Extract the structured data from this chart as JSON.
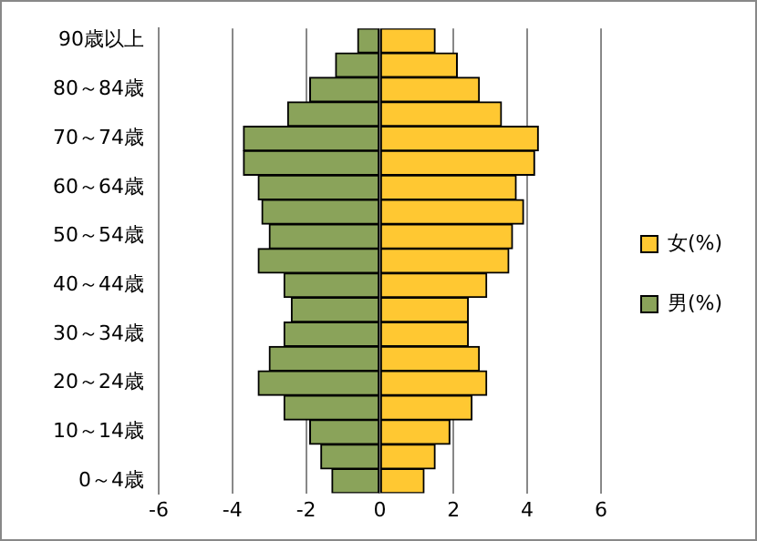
{
  "chart_data": {
    "type": "bar",
    "orientation": "horizontal",
    "stacked": true,
    "categories": [
      "90歳以上",
      null,
      "80～84歳",
      null,
      "70～74歳",
      null,
      "60～64歳",
      null,
      "50～54歳",
      null,
      "40～44歳",
      null,
      "30～34歳",
      null,
      "20～24歳",
      null,
      "10～14歳",
      null,
      "0～4歳"
    ],
    "series": [
      {
        "name": "女(%)",
        "color": "#ffc832",
        "values": [
          1.5,
          2.1,
          2.7,
          3.3,
          4.3,
          4.2,
          3.7,
          3.9,
          3.6,
          3.5,
          2.9,
          2.4,
          2.4,
          2.7,
          2.9,
          2.5,
          1.9,
          1.5,
          1.2
        ]
      },
      {
        "name": "男(%)",
        "color": "#8aa35a",
        "values": [
          -0.6,
          -1.2,
          -1.9,
          -2.5,
          -3.7,
          -3.7,
          -3.3,
          -3.2,
          -3.0,
          -3.3,
          -2.6,
          -2.4,
          -2.6,
          -3.0,
          -3.3,
          -2.6,
          -1.9,
          -1.6,
          -1.3
        ]
      }
    ],
    "xlim": [
      -6,
      6
    ],
    "xticks": [
      -6,
      -4,
      -2,
      0,
      2,
      4,
      6
    ],
    "grid": "x",
    "legend": "right"
  }
}
